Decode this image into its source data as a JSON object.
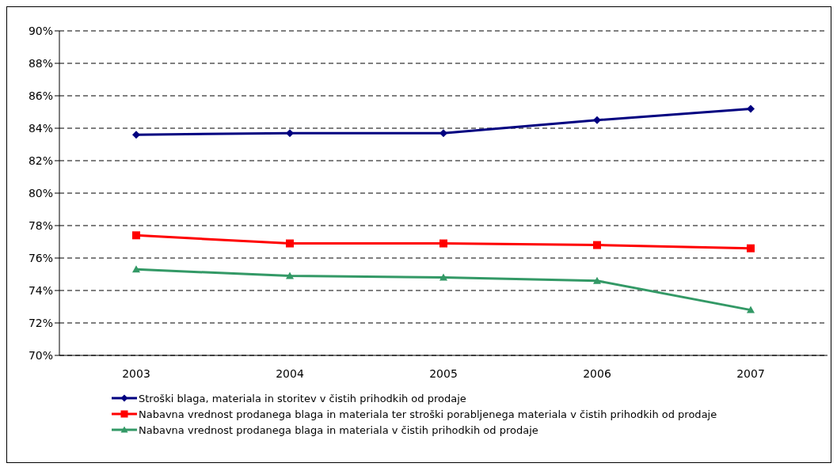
{
  "chart_data": {
    "type": "line",
    "categories": [
      "2003",
      "2004",
      "2005",
      "2006",
      "2007"
    ],
    "series": [
      {
        "name": "Stroški blaga, materiala in storitev v čistih prihodkih od prodaje",
        "color": "#000080",
        "marker": "diamond",
        "values": [
          83.6,
          83.7,
          83.7,
          84.5,
          85.2
        ]
      },
      {
        "name": "Nabavna vrednost prodanega blaga in materiala ter stroški porabljenega materiala v čistih prihodkih od prodaje",
        "color": "#ff0000",
        "marker": "square",
        "values": [
          77.4,
          76.9,
          76.9,
          76.8,
          76.6
        ]
      },
      {
        "name": "Nabavna vrednost prodanega blaga in materiala v čistih prihodkih od prodaje",
        "color": "#339966",
        "marker": "triangle",
        "values": [
          75.3,
          74.9,
          74.8,
          74.6,
          72.8
        ]
      }
    ],
    "ylim": [
      70,
      90
    ],
    "yticks": [
      {
        "value": 70,
        "label": "70%"
      },
      {
        "value": 72,
        "label": "72%"
      },
      {
        "value": 74,
        "label": "74%"
      },
      {
        "value": 76,
        "label": "76%"
      },
      {
        "value": 78,
        "label": "78%"
      },
      {
        "value": 80,
        "label": "80%"
      },
      {
        "value": 82,
        "label": "82%"
      },
      {
        "value": 84,
        "label": "84%"
      },
      {
        "value": 86,
        "label": "86%"
      },
      {
        "value": 88,
        "label": "88%"
      },
      {
        "value": 90,
        "label": "90%"
      }
    ],
    "grid": "y",
    "legend": "bottom",
    "line_style": "solid"
  }
}
